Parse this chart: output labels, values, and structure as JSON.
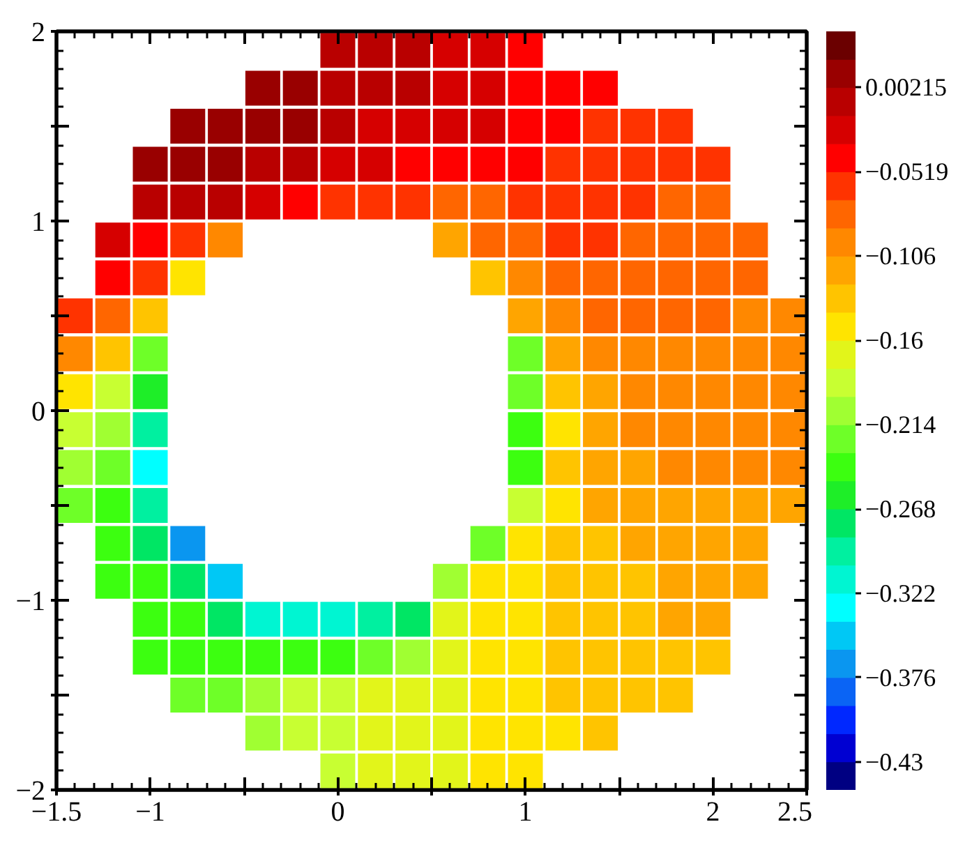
{
  "chart_data": {
    "type": "scatter",
    "marker": "square",
    "x": [
      0,
      0.2,
      0.4,
      0.6,
      0.8,
      1,
      -0.4,
      -0.2,
      0,
      0.2,
      0.4,
      0.6,
      0.8,
      1,
      1.2,
      1.4,
      -0.8,
      -0.6,
      -0.4,
      -0.2,
      0,
      0.2,
      0.4,
      0.6,
      0.8,
      1,
      1.2,
      1.4,
      1.6,
      1.8,
      -1,
      -0.8,
      -0.6,
      -0.4,
      -0.2,
      0,
      0.2,
      0.4,
      0.6,
      0.8,
      1,
      1.2,
      1.4,
      1.6,
      1.8,
      2,
      -1,
      -0.8,
      -0.6,
      -0.4,
      -0.2,
      0,
      0.2,
      0.4,
      0.6,
      0.8,
      1,
      1.2,
      1.4,
      1.6,
      1.8,
      2,
      -1.2,
      -1,
      -0.8,
      -0.6,
      0.6,
      0.8,
      1,
      1.2,
      1.4,
      1.6,
      1.8,
      2,
      2.2,
      -1.2,
      -1,
      -0.8,
      0.8,
      1,
      1.2,
      1.4,
      1.6,
      1.8,
      2,
      2.2,
      -1.4,
      -1.2,
      -1,
      1,
      1.2,
      1.4,
      1.6,
      1.8,
      2,
      2.2,
      2.4,
      -1.4,
      -1.2,
      -1,
      1,
      1.2,
      1.4,
      1.6,
      1.8,
      2,
      2.2,
      2.4,
      -1.4,
      -1.2,
      -1,
      1,
      1.2,
      1.4,
      1.6,
      1.8,
      2,
      2.2,
      2.4,
      -1.4,
      -1.2,
      -1,
      1,
      1.2,
      1.4,
      1.6,
      1.8,
      2,
      2.2,
      2.4,
      -1.4,
      -1.2,
      -1,
      1,
      1.2,
      1.4,
      1.6,
      1.8,
      2,
      2.2,
      2.4,
      -1.4,
      -1.2,
      -1,
      1,
      1.2,
      1.4,
      1.6,
      1.8,
      2,
      2.2,
      2.4,
      -1.2,
      -1,
      -0.8,
      0.8,
      1,
      1.2,
      1.4,
      1.6,
      1.8,
      2,
      2.2,
      -1.2,
      -1,
      -0.8,
      -0.6,
      0.6,
      0.8,
      1,
      1.2,
      1.4,
      1.6,
      1.8,
      2,
      2.2,
      -1,
      -0.8,
      -0.6,
      -0.4,
      -0.2,
      0,
      0.2,
      0.4,
      0.6,
      0.8,
      1,
      1.2,
      1.4,
      1.6,
      1.8,
      2,
      -1,
      -0.8,
      -0.6,
      -0.4,
      -0.2,
      0,
      0.2,
      0.4,
      0.6,
      0.8,
      1,
      1.2,
      1.4,
      1.6,
      1.8,
      2,
      -0.8,
      -0.6,
      -0.4,
      -0.2,
      0,
      0.2,
      0.4,
      0.6,
      0.8,
      1,
      1.2,
      1.4,
      1.6,
      1.8,
      -0.4,
      -0.2,
      0,
      0.2,
      0.4,
      0.6,
      0.8,
      1,
      1.2,
      1.4,
      0,
      0.2,
      0.4,
      0.6,
      0.8,
      1
    ],
    "values": [
      1.9,
      1.9,
      1.9,
      1.9,
      1.9,
      1.9,
      1.7,
      1.7,
      1.7,
      1.7,
      1.7,
      1.7,
      1.7,
      1.7,
      1.7,
      1.7,
      1.5,
      1.5,
      1.5,
      1.5,
      1.5,
      1.5,
      1.5,
      1.5,
      1.5,
      1.5,
      1.5,
      1.5,
      1.5,
      1.5,
      1.3,
      1.3,
      1.3,
      1.3,
      1.3,
      1.3,
      1.3,
      1.3,
      1.3,
      1.3,
      1.3,
      1.3,
      1.3,
      1.3,
      1.3,
      1.3,
      1.1,
      1.1,
      1.1,
      1.1,
      1.1,
      1.1,
      1.1,
      1.1,
      1.1,
      1.1,
      1.1,
      1.1,
      1.1,
      1.1,
      1.1,
      1.1,
      0.9,
      0.9,
      0.9,
      0.9,
      0.9,
      0.9,
      0.9,
      0.9,
      0.9,
      0.9,
      0.9,
      0.9,
      0.9,
      0.7,
      0.7,
      0.7,
      0.7,
      0.7,
      0.7,
      0.7,
      0.7,
      0.7,
      0.7,
      0.7,
      0.5,
      0.5,
      0.5,
      0.5,
      0.5,
      0.5,
      0.5,
      0.5,
      0.5,
      0.5,
      0.5,
      0.3,
      0.3,
      0.3,
      0.3,
      0.3,
      0.3,
      0.3,
      0.3,
      0.3,
      0.3,
      0.3,
      0.1,
      0.1,
      0.1,
      0.1,
      0.1,
      0.1,
      0.1,
      0.1,
      0.1,
      0.1,
      0.1,
      -0.1,
      -0.1,
      -0.1,
      -0.1,
      -0.1,
      -0.1,
      -0.1,
      -0.1,
      -0.1,
      -0.1,
      -0.1,
      -0.3,
      -0.3,
      -0.3,
      -0.3,
      -0.3,
      -0.3,
      -0.3,
      -0.3,
      -0.3,
      -0.3,
      -0.3,
      -0.5,
      -0.5,
      -0.5,
      -0.5,
      -0.5,
      -0.5,
      -0.5,
      -0.5,
      -0.5,
      -0.5,
      -0.5,
      -0.7,
      -0.7,
      -0.7,
      -0.7,
      -0.7,
      -0.7,
      -0.7,
      -0.7,
      -0.7,
      -0.7,
      -0.7,
      -0.9,
      -0.9,
      -0.9,
      -0.9,
      -0.9,
      -0.9,
      -0.9,
      -0.9,
      -0.9,
      -0.9,
      -0.9,
      -0.9,
      -0.9,
      -1.1,
      -1.1,
      -1.1,
      -1.1,
      -1.1,
      -1.1,
      -1.1,
      -1.1,
      -1.1,
      -1.1,
      -1.1,
      -1.1,
      -1.1,
      -1.1,
      -1.1,
      -1.1,
      -1.3,
      -1.3,
      -1.3,
      -1.3,
      -1.3,
      -1.3,
      -1.3,
      -1.3,
      -1.3,
      -1.3,
      -1.3,
      -1.3,
      -1.3,
      -1.3,
      -1.3,
      -1.3,
      -1.5,
      -1.5,
      -1.5,
      -1.5,
      -1.5,
      -1.5,
      -1.5,
      -1.5,
      -1.5,
      -1.5,
      -1.5,
      -1.5,
      -1.5,
      -1.5,
      -1.7,
      -1.7,
      -1.7,
      -1.7,
      -1.7,
      -1.7,
      -1.7,
      -1.7,
      -1.7,
      -1.7,
      -1.9,
      -1.9,
      -1.9,
      -1.9,
      -1.9,
      -1.9
    ],
    "cvalues": [
      -0.007,
      -0.007,
      -0.007,
      -0.025,
      -0.025,
      -0.043,
      0.011,
      0.011,
      -0.007,
      -0.007,
      -0.007,
      -0.025,
      -0.025,
      -0.043,
      -0.043,
      -0.043,
      0.011,
      0.011,
      0.011,
      0.011,
      -0.007,
      -0.025,
      -0.025,
      -0.025,
      -0.025,
      -0.043,
      -0.043,
      -0.061,
      -0.061,
      -0.061,
      0.011,
      0.011,
      0.011,
      -0.007,
      -0.007,
      -0.025,
      -0.025,
      -0.043,
      -0.043,
      -0.043,
      -0.043,
      -0.061,
      -0.061,
      -0.061,
      -0.061,
      -0.061,
      -0.007,
      -0.007,
      -0.007,
      -0.025,
      -0.043,
      -0.061,
      -0.061,
      -0.061,
      -0.079,
      -0.079,
      -0.061,
      -0.061,
      -0.061,
      -0.061,
      -0.079,
      -0.079,
      -0.025,
      -0.043,
      -0.061,
      -0.097,
      -0.115,
      -0.079,
      -0.079,
      -0.061,
      -0.061,
      -0.079,
      -0.079,
      -0.079,
      -0.079,
      -0.043,
      -0.061,
      -0.151,
      -0.133,
      -0.097,
      -0.079,
      -0.079,
      -0.079,
      -0.079,
      -0.079,
      -0.079,
      -0.061,
      -0.079,
      -0.133,
      -0.115,
      -0.097,
      -0.079,
      -0.079,
      -0.079,
      -0.079,
      -0.097,
      -0.097,
      -0.097,
      -0.133,
      -0.223,
      -0.223,
      -0.115,
      -0.097,
      -0.097,
      -0.097,
      -0.097,
      -0.097,
      -0.097,
      -0.151,
      -0.187,
      -0.259,
      -0.223,
      -0.133,
      -0.115,
      -0.097,
      -0.097,
      -0.097,
      -0.097,
      -0.097,
      -0.187,
      -0.205,
      -0.295,
      -0.241,
      -0.151,
      -0.115,
      -0.097,
      -0.097,
      -0.097,
      -0.097,
      -0.097,
      -0.205,
      -0.223,
      -0.331,
      -0.241,
      -0.133,
      -0.115,
      -0.115,
      -0.097,
      -0.097,
      -0.097,
      -0.097,
      -0.223,
      -0.241,
      -0.295,
      -0.187,
      -0.151,
      -0.115,
      -0.115,
      -0.115,
      -0.115,
      -0.115,
      -0.115,
      -0.241,
      -0.277,
      -0.367,
      -0.223,
      -0.151,
      -0.133,
      -0.133,
      -0.115,
      -0.115,
      -0.115,
      -0.115,
      -0.241,
      -0.241,
      -0.277,
      -0.349,
      -0.205,
      -0.151,
      -0.151,
      -0.133,
      -0.133,
      -0.133,
      -0.115,
      -0.115,
      -0.115,
      -0.241,
      -0.241,
      -0.277,
      -0.313,
      -0.313,
      -0.313,
      -0.295,
      -0.277,
      -0.169,
      -0.151,
      -0.151,
      -0.133,
      -0.133,
      -0.133,
      -0.115,
      -0.115,
      -0.241,
      -0.241,
      -0.241,
      -0.241,
      -0.241,
      -0.241,
      -0.223,
      -0.205,
      -0.169,
      -0.151,
      -0.151,
      -0.133,
      -0.133,
      -0.133,
      -0.133,
      -0.133,
      -0.223,
      -0.223,
      -0.205,
      -0.187,
      -0.187,
      -0.169,
      -0.169,
      -0.169,
      -0.151,
      -0.151,
      -0.133,
      -0.133,
      -0.133,
      -0.133,
      -0.205,
      -0.187,
      -0.187,
      -0.169,
      -0.169,
      -0.169,
      -0.151,
      -0.151,
      -0.151,
      -0.133,
      -0.187,
      -0.169,
      -0.169,
      -0.169,
      -0.151,
      -0.151
    ],
    "clim": [
      -0.448,
      0.038
    ],
    "cticks": [
      {
        "value": -0.43,
        "label": "−0.43"
      },
      {
        "value": -0.376,
        "label": "−0.376"
      },
      {
        "value": -0.322,
        "label": "−0.322"
      },
      {
        "value": -0.268,
        "label": "−0.268"
      },
      {
        "value": -0.214,
        "label": "−0.214"
      },
      {
        "value": -0.16,
        "label": "−0.16"
      },
      {
        "value": -0.106,
        "label": "−0.106"
      },
      {
        "value": -0.0519,
        "label": "−0.0519"
      },
      0.00215
    ],
    "xlim": [
      -1.5,
      2.5
    ],
    "ylim": [
      -2,
      2
    ],
    "xticks": [
      {
        "value": -1.5,
        "label": "−1.5"
      },
      {
        "value": -1,
        "label": "−1"
      },
      {
        "value": -0.5,
        "label": null
      },
      0,
      {
        "value": 0.5,
        "label": null
      },
      1,
      {
        "value": 1.5,
        "label": null
      },
      2,
      2.5
    ],
    "yticks": [
      {
        "value": -2,
        "label": "−2"
      },
      {
        "value": -1.5,
        "label": null
      },
      {
        "value": -1,
        "label": "−1"
      },
      {
        "value": -0.5,
        "label": null
      },
      0,
      {
        "value": 0.5,
        "label": null
      },
      1,
      {
        "value": 1.5,
        "label": null
      },
      2
    ]
  }
}
